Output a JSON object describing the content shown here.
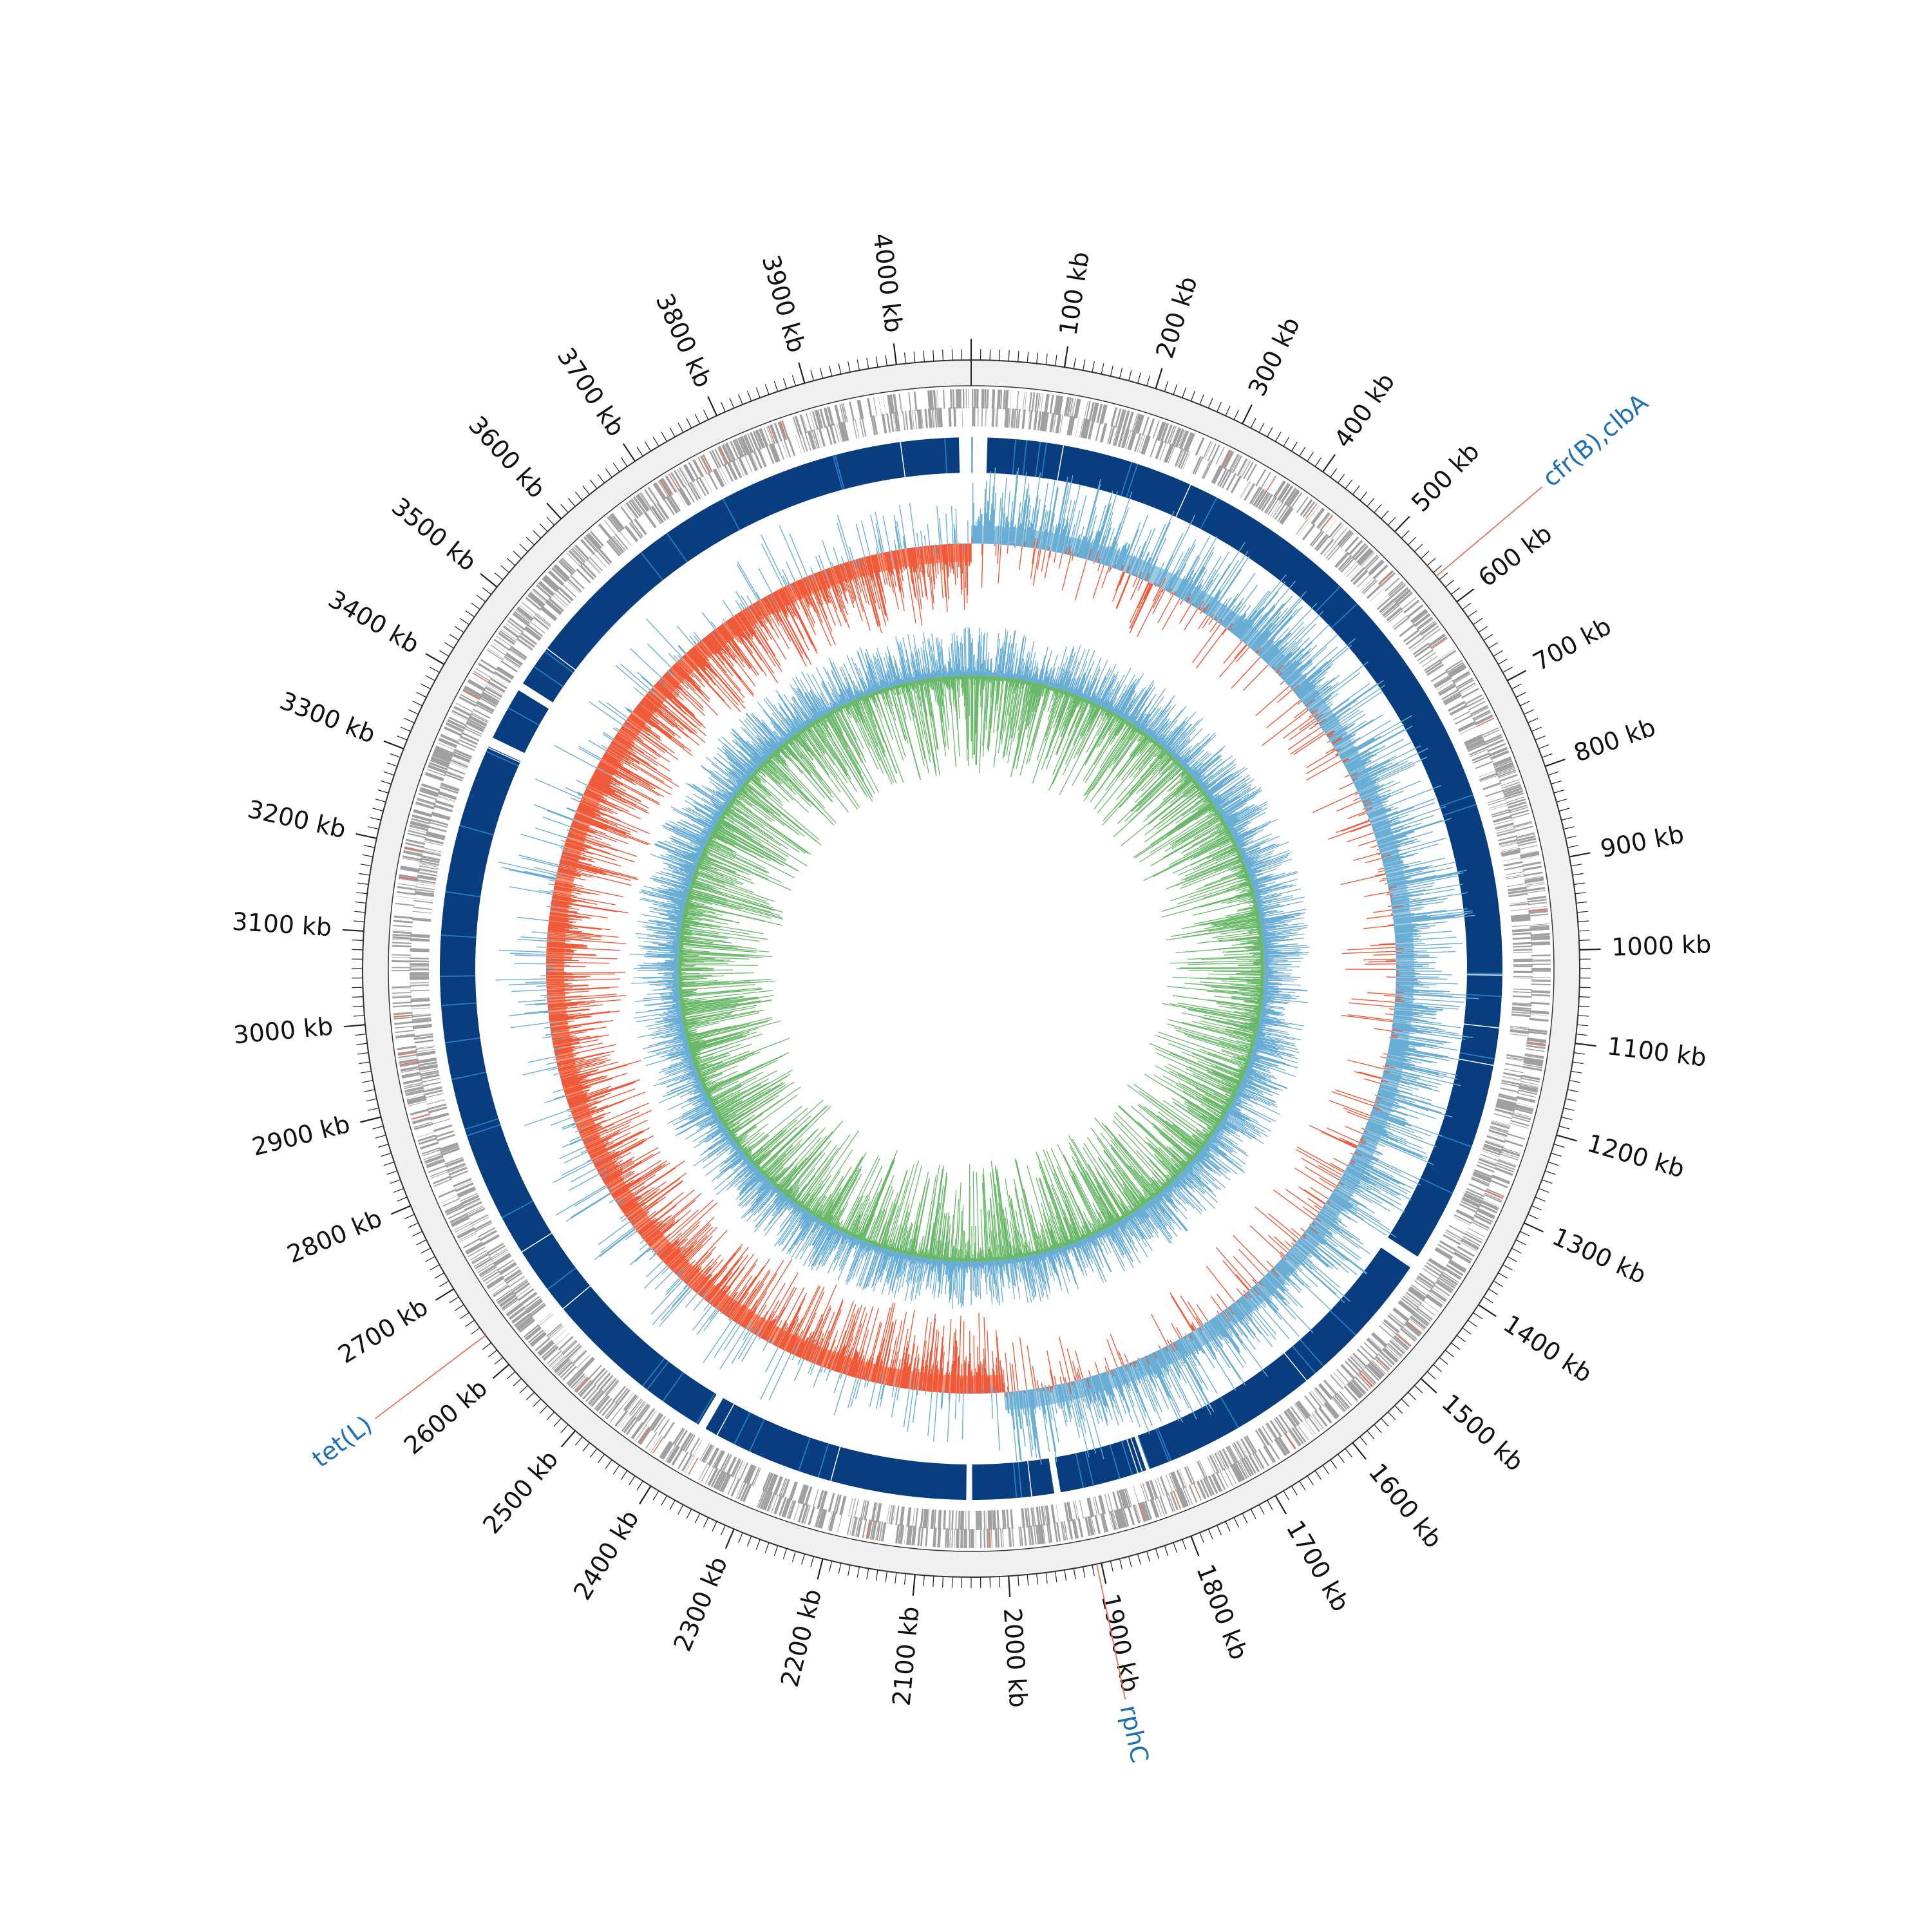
{
  "genome": {
    "length_kb": 4080,
    "tick_unit": "kb",
    "major_tick_step_kb": 100,
    "minor_tick_step_kb": 10
  },
  "tick_labels": [
    "100 kb",
    "200 kb",
    "300 kb",
    "400 kb",
    "500 kb",
    "600 kb",
    "700 kb",
    "800 kb",
    "900 kb",
    "1000 kb",
    "1100 kb",
    "1200 kb",
    "1300 kb",
    "1400 kb",
    "1500 kb",
    "1600 kb",
    "1700 kb",
    "1800 kb",
    "1900 kb",
    "2000 kb",
    "2100 kb",
    "2200 kb",
    "2300 kb",
    "2400 kb",
    "2500 kb",
    "2600 kb",
    "2700 kb",
    "2800 kb",
    "2900 kb",
    "3000 kb",
    "3100 kb",
    "3200 kb",
    "3300 kb",
    "3400 kb",
    "3500 kb",
    "3600 kb",
    "3700 kb",
    "3800 kb",
    "3900 kb",
    "4000 kb"
  ],
  "annotations": [
    {
      "label": "cfr(B),clbA",
      "position_kb": 565
    },
    {
      "label": "rphC",
      "position_kb": 1905
    },
    {
      "label": "tet(L)",
      "position_kb": 2640
    }
  ],
  "contig_gaps_kb": [
    [
      -15,
      20
    ],
    [
      1392,
      1408
    ],
    [
      1818,
      1822
    ],
    [
      1930,
      1938
    ],
    [
      2040,
      2046
    ],
    [
      2380,
      2390
    ],
    [
      3340,
      3352
    ],
    [
      3418,
      3428
    ]
  ],
  "gc_skew": {
    "positive_arc_kb": [
      0,
      1990
    ],
    "negative_arc_kb": [
      1990,
      4080
    ]
  },
  "colors": {
    "ring_bg": "#f0f0f0",
    "ring_line": "#333333",
    "cds": "#a0a0a0",
    "cds_highlight": "#e8735a",
    "contig": "#083d7f",
    "contig_marker": "#2a7ac0",
    "skew_pos": "#9ecae1",
    "skew_pos_line": "#6aaed6",
    "skew_neg": "#fc9272",
    "skew_neg_line": "#ef5a3a",
    "gc_fill": "#a1d99b",
    "gc_line": "#6ab96a",
    "gc_outer": "#6aaed6",
    "annotation_text": "#1f6fb4",
    "annotation_line": "#e8735a",
    "tick": "#222222"
  }
}
